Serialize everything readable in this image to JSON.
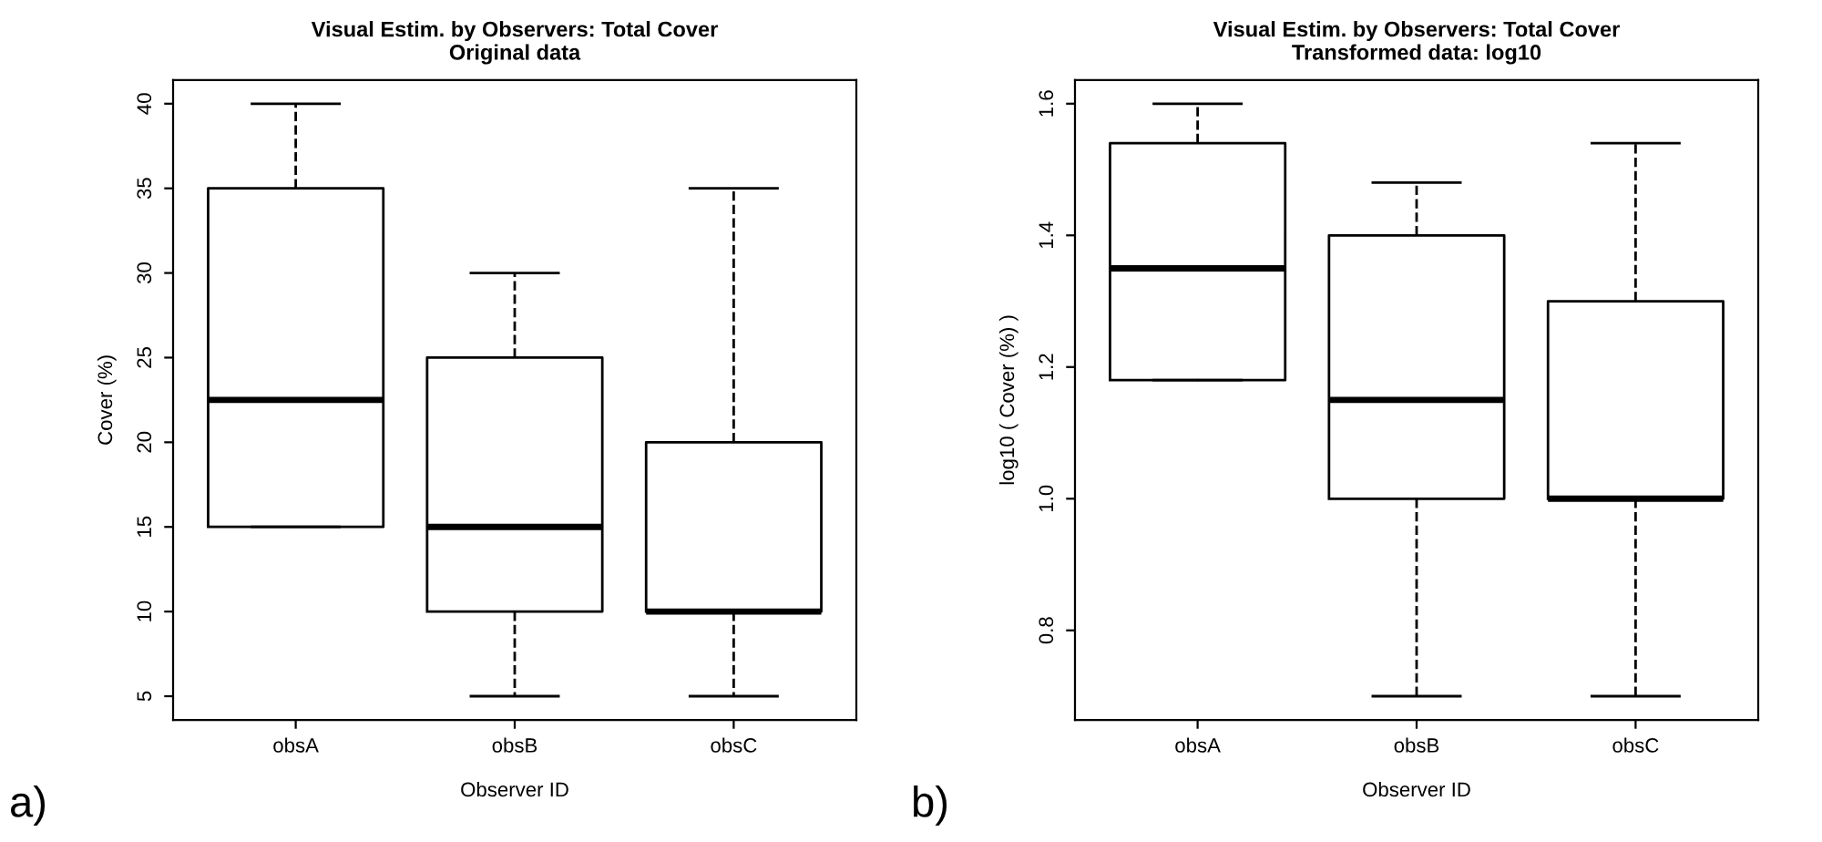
{
  "chart_data": [
    {
      "type": "box",
      "title": "Visual Estim. by Observers: Total Cover",
      "subtitle": "Original data",
      "xlabel": "Observer ID",
      "ylabel": "Cover (%)",
      "categories": [
        "obsA",
        "obsB",
        "obsC"
      ],
      "boxes": [
        {
          "low": 15,
          "q1": 15,
          "median": 22.5,
          "q3": 35,
          "high": 40
        },
        {
          "low": 5,
          "q1": 10,
          "median": 15,
          "q3": 25,
          "high": 30
        },
        {
          "low": 5,
          "q1": 10,
          "median": 10,
          "q3": 20,
          "high": 35
        }
      ],
      "ylim": [
        3.6,
        41.4
      ],
      "yticks": [
        5,
        10,
        15,
        20,
        25,
        30,
        35,
        40
      ],
      "line_style": "dashed",
      "annotations": [
        "a)"
      ]
    },
    {
      "type": "box",
      "title": "Visual Estim. by Observers: Total Cover",
      "subtitle": "Transformed data: log10",
      "xlabel": "Observer ID",
      "ylabel": "log10 ( Cover (%) )",
      "categories": [
        "obsA",
        "obsB",
        "obsC"
      ],
      "boxes": [
        {
          "low": 1.18,
          "q1": 1.18,
          "median": 1.35,
          "q3": 1.54,
          "high": 1.6
        },
        {
          "low": 0.7,
          "q1": 1.0,
          "median": 1.15,
          "q3": 1.4,
          "high": 1.48
        },
        {
          "low": 0.7,
          "q1": 1.0,
          "median": 1.0,
          "q3": 1.3,
          "high": 1.54
        }
      ],
      "ylim": [
        0.664,
        1.636
      ],
      "yticks": [
        0.8,
        {
          "value": 1,
          "label": "1.0"
        },
        1.2,
        1.4,
        1.6
      ],
      "line_style": "dashed",
      "annotations": [
        "b)"
      ]
    }
  ]
}
